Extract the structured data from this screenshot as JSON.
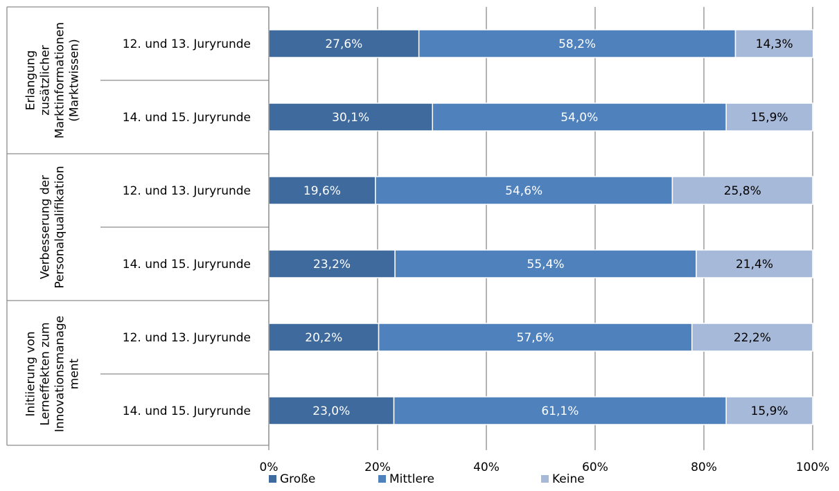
{
  "chart_data": {
    "type": "bar",
    "orientation": "horizontal",
    "stacked": true,
    "xlim": [
      0,
      100
    ],
    "x_ticks": [
      "0%",
      "20%",
      "40%",
      "60%",
      "80%",
      "100%"
    ],
    "grid": true,
    "legend_position": "bottom",
    "groups": [
      {
        "label_lines": [
          "Erlangung",
          "zusätzlicher",
          "Marktinformationen",
          "(Marktwissen)"
        ],
        "rows": [
          {
            "label": "12. und 13. Juryrunde",
            "values": [
              27.6,
              58.2,
              14.3
            ],
            "labels": [
              "27,6%",
              "58,2%",
              "14,3%"
            ]
          },
          {
            "label": "14. und 15. Juryrunde",
            "values": [
              30.1,
              54.0,
              15.9
            ],
            "labels": [
              "30,1%",
              "54,0%",
              "15,9%"
            ]
          }
        ]
      },
      {
        "label_lines": [
          "Verbesserung der",
          "Personalqualifikation"
        ],
        "rows": [
          {
            "label": "12. und 13. Juryrunde",
            "values": [
              19.6,
              54.6,
              25.8
            ],
            "labels": [
              "19,6%",
              "54,6%",
              "25,8%"
            ]
          },
          {
            "label": "14. und 15. Juryrunde",
            "values": [
              23.2,
              55.4,
              21.4
            ],
            "labels": [
              "23,2%",
              "55,4%",
              "21,4%"
            ]
          }
        ]
      },
      {
        "label_lines": [
          "Initiierung von",
          "Lerneffekten zum",
          "Innovationsmanage",
          "ment"
        ],
        "rows": [
          {
            "label": "12. und 13. Juryrunde",
            "values": [
              20.2,
              57.6,
              22.2
            ],
            "labels": [
              "20,2%",
              "57,6%",
              "22,2%"
            ]
          },
          {
            "label": "14. und 15. Juryrunde",
            "values": [
              23.0,
              61.1,
              15.9
            ],
            "labels": [
              "23,0%",
              "61,1%",
              "15,9%"
            ]
          }
        ]
      }
    ],
    "series": [
      {
        "name": "Große",
        "color": "#3f6a9e",
        "label_color": "#ffffff"
      },
      {
        "name": "Mittlere",
        "color": "#4f81bd",
        "label_color": "#ffffff"
      },
      {
        "name": "Keine",
        "color": "#a7b9d9",
        "label_color": "#000000"
      }
    ]
  }
}
